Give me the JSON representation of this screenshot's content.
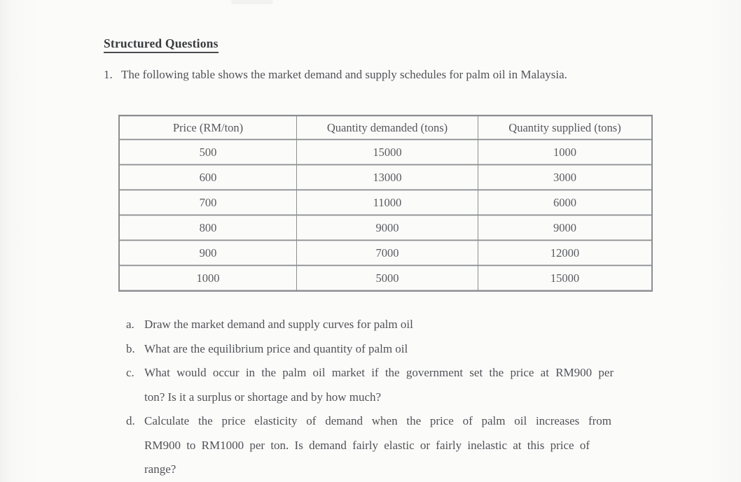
{
  "page": {
    "heading": "Structured Questions",
    "question_number": "1.",
    "intro": "The following table shows the market demand and supply schedules for palm oil in Malaysia."
  },
  "table": {
    "headers": [
      "Price (RM/ton)",
      "Quantity demanded (tons)",
      "Quantity supplied (tons)"
    ],
    "rows": [
      [
        "500",
        "15000",
        "1000"
      ],
      [
        "600",
        "13000",
        "3000"
      ],
      [
        "700",
        "11000",
        "6000"
      ],
      [
        "800",
        "9000",
        "9000"
      ],
      [
        "900",
        "7000",
        "12000"
      ],
      [
        "1000",
        "5000",
        "15000"
      ]
    ]
  },
  "questions": [
    {
      "label": "a.",
      "lines": [
        "Draw the market demand and supply curves for palm oil"
      ]
    },
    {
      "label": "b.",
      "lines": [
        "What are the equilibrium price and quantity of palm oil"
      ]
    },
    {
      "label": "c.",
      "lines": [
        "What would occur in the palm oil market if the government set the price at RM900 per",
        "ton? Is it a surplus or shortage and by how much?"
      ]
    },
    {
      "label": "d.",
      "lines": [
        "Calculate the price elasticity of demand when the price of palm oil increases from",
        "RM900 to RM1000 per ton. Is demand fairly elastic or fairly inelastic at this price of",
        "range?"
      ]
    }
  ]
}
